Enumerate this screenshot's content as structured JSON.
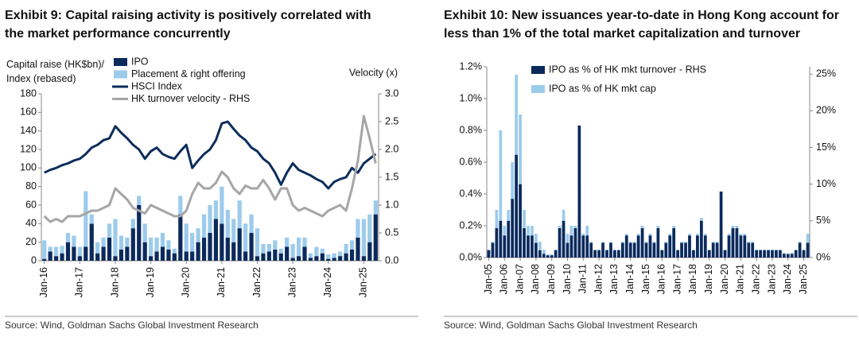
{
  "chart_data": [
    {
      "type": "combo",
      "title": "Exhibit 9: Capital raising activity is positively correlated with the market performance concurrently",
      "y_label": "Capital raise (HK$bn)/ Index (rebased)",
      "y2_label": "Velocity (x)",
      "source": "Source: Wind, Goldman Sachs Global Investment Research",
      "stacked": true,
      "legend": "top-left",
      "categories": [
        "Jan-16",
        null,
        null,
        null,
        null,
        null,
        "Jan-17",
        null,
        null,
        null,
        null,
        null,
        "Jan-18",
        null,
        null,
        null,
        null,
        null,
        "Jan-19",
        null,
        null,
        null,
        null,
        null,
        "Jan-20",
        null,
        null,
        null,
        null,
        null,
        "Jan-21",
        null,
        null,
        null,
        null,
        null,
        "Jan-22",
        null,
        null,
        null,
        null,
        null,
        "Jan-23",
        null,
        null,
        null,
        null,
        null,
        "Jan-24",
        null,
        null,
        null,
        null,
        null,
        "Jan-25",
        null,
        null
      ],
      "ylim": [
        0,
        180
      ],
      "yticks": [
        0,
        20,
        40,
        60,
        80,
        100,
        120,
        140,
        160,
        180
      ],
      "y2lim": [
        0,
        3
      ],
      "y2ticks": [
        {
          "value": 0,
          "label": "0.0"
        },
        0.5,
        {
          "value": 1,
          "label": "1.0"
        },
        1.5,
        {
          "value": 2,
          "label": "2.0"
        },
        2.5,
        {
          "value": 3,
          "label": "3.0"
        }
      ],
      "series": [
        {
          "name": "IPO",
          "style": "bar",
          "color": "#0b2a5c",
          "values": [
            2,
            10,
            5,
            8,
            20,
            15,
            5,
            15,
            40,
            8,
            15,
            25,
            5,
            12,
            15,
            35,
            60,
            20,
            5,
            10,
            15,
            12,
            8,
            50,
            10,
            10,
            20,
            25,
            30,
            45,
            40,
            25,
            20,
            35,
            10,
            30,
            5,
            8,
            10,
            12,
            8,
            15,
            3,
            5,
            15,
            3,
            5,
            8,
            2,
            3,
            5,
            8,
            12,
            25,
            5,
            20,
            50
          ]
        },
        {
          "name": "Placement & right offering",
          "style": "bar",
          "color": "#9dcbec",
          "values": [
            20,
            5,
            10,
            8,
            10,
            12,
            10,
            60,
            10,
            12,
            10,
            15,
            40,
            15,
            10,
            10,
            10,
            20,
            20,
            15,
            15,
            10,
            5,
            20,
            30,
            20,
            15,
            25,
            30,
            20,
            40,
            30,
            25,
            30,
            30,
            20,
            30,
            10,
            8,
            10,
            5,
            10,
            15,
            20,
            10,
            5,
            10,
            5,
            5,
            5,
            5,
            10,
            10,
            20,
            40,
            30,
            15
          ]
        },
        {
          "name": "HSCI Index",
          "style": "line",
          "color": "#0b2d5b",
          "values": [
            95,
            98,
            100,
            103,
            105,
            108,
            110,
            115,
            122,
            125,
            130,
            132,
            145,
            138,
            132,
            125,
            120,
            110,
            118,
            122,
            115,
            112,
            110,
            118,
            125,
            100,
            108,
            115,
            120,
            130,
            148,
            150,
            142,
            135,
            130,
            122,
            118,
            110,
            105,
            95,
            82,
            95,
            105,
            98,
            95,
            92,
            88,
            85,
            78,
            85,
            88,
            90,
            100,
            95,
            105,
            110,
            115
          ]
        },
        {
          "name": "HK turnover velocity - RHS",
          "style": "line",
          "axis": "y2",
          "color": "#a6a6a6",
          "values": [
            0.8,
            0.7,
            0.75,
            0.7,
            0.8,
            0.8,
            0.8,
            0.85,
            0.9,
            0.9,
            0.95,
            1.0,
            1.3,
            1.2,
            1.1,
            0.95,
            0.9,
            0.85,
            1.0,
            0.95,
            0.9,
            0.85,
            0.8,
            0.8,
            0.9,
            1.2,
            1.4,
            1.3,
            1.3,
            1.4,
            1.6,
            1.5,
            1.3,
            1.2,
            1.35,
            1.3,
            1.3,
            1.45,
            1.3,
            1.1,
            1.3,
            1.3,
            1.0,
            0.9,
            0.95,
            0.9,
            0.85,
            0.8,
            0.9,
            0.95,
            1.0,
            0.9,
            1.3,
            1.8,
            2.6,
            2.2,
            1.75
          ]
        }
      ]
    },
    {
      "type": "bar",
      "title": "Exhibit 10: New issuances year-to-date in Hong Kong account for less than 1% of the total market capitalization and turnover",
      "source": "Source: Wind, Goldman Sachs Global Investment Research",
      "stacked": false,
      "legend": "top-left",
      "categories": [
        "Jan-05",
        null,
        null,
        null,
        "Jan-06",
        null,
        null,
        null,
        "Jan-07",
        null,
        null,
        null,
        "Jan-08",
        null,
        null,
        null,
        "Jan-09",
        null,
        null,
        null,
        "Jan-10",
        null,
        null,
        null,
        "Jan-11",
        null,
        null,
        null,
        "Jan-12",
        null,
        null,
        null,
        "Jan-13",
        null,
        null,
        null,
        "Jan-14",
        null,
        null,
        null,
        "Jan-15",
        null,
        null,
        null,
        "Jan-16",
        null,
        null,
        null,
        "Jan-17",
        null,
        null,
        null,
        "Jan-18",
        null,
        null,
        null,
        "Jan-19",
        null,
        null,
        null,
        "Jan-20",
        null,
        null,
        null,
        "Jan-21",
        null,
        null,
        null,
        "Jan-22",
        null,
        null,
        null,
        "Jan-23",
        null,
        null,
        null,
        "Jan-24",
        null,
        null,
        null,
        "Jan-25",
        null
      ],
      "ylim": [
        0,
        1.2
      ],
      "yticks": [
        {
          "value": 0,
          "label": "0.0%"
        },
        {
          "value": 0.2,
          "label": "0.2%"
        },
        {
          "value": 0.4,
          "label": "0.4%"
        },
        {
          "value": 0.6,
          "label": "0.6%"
        },
        {
          "value": 0.8,
          "label": "0.8%"
        },
        {
          "value": 1,
          "label": "1.0%"
        },
        {
          "value": 1.2,
          "label": "1.2%"
        }
      ],
      "y2lim": [
        0,
        26
      ],
      "y2ticks": [
        {
          "value": 0,
          "label": "0%"
        },
        {
          "value": 5,
          "label": "5%"
        },
        {
          "value": 10,
          "label": "10%"
        },
        {
          "value": 15,
          "label": "15%"
        },
        {
          "value": 20,
          "label": "20%"
        },
        {
          "value": 25,
          "label": "25%"
        }
      ],
      "series": [
        {
          "name": "IPO as % of HK mkt turnover - RHS",
          "style": "bar",
          "axis": "y2",
          "color": "#0b2a5c",
          "values": [
            1,
            2,
            4,
            5,
            3,
            5,
            8,
            14,
            10,
            4,
            3,
            3,
            2,
            1,
            0.5,
            0.3,
            0.3,
            1,
            4,
            5,
            2,
            3,
            4,
            18,
            3,
            3,
            2,
            1,
            1,
            2,
            1,
            2,
            1,
            1,
            2,
            3,
            2,
            2,
            3,
            4,
            2,
            3,
            2,
            4,
            1,
            2,
            3,
            4,
            1,
            2,
            2,
            3,
            1,
            3,
            5,
            3,
            1,
            2,
            2,
            9,
            1,
            3,
            4,
            4,
            3,
            3,
            2,
            2,
            1,
            1,
            1,
            1,
            1,
            1,
            1,
            0.5,
            0.5,
            0.5,
            1,
            2,
            1,
            2
          ]
        },
        {
          "name": "IPO as % of HK mkt cap",
          "style": "bar",
          "color": "#9dcbec",
          "values": [
            0.05,
            0.1,
            0.3,
            0.8,
            0.2,
            0.3,
            0.6,
            1.15,
            0.9,
            0.3,
            0.2,
            0.2,
            0.15,
            0.1,
            0.05,
            0.02,
            0.02,
            0.05,
            0.2,
            0.3,
            0.15,
            0.2,
            0.2,
            0.45,
            0.15,
            0.2,
            0.1,
            0.05,
            0.05,
            0.1,
            0.05,
            0.1,
            0.05,
            0.05,
            0.1,
            0.15,
            0.1,
            0.1,
            0.15,
            0.2,
            0.1,
            0.15,
            0.1,
            0.2,
            0.05,
            0.1,
            0.15,
            0.2,
            0.05,
            0.1,
            0.1,
            0.15,
            0.05,
            0.15,
            0.25,
            0.15,
            0.05,
            0.1,
            0.1,
            0.2,
            0.05,
            0.15,
            0.2,
            0.2,
            0.15,
            0.15,
            0.1,
            0.1,
            0.05,
            0.05,
            0.05,
            0.05,
            0.05,
            0.05,
            0.05,
            0.03,
            0.02,
            0.03,
            0.05,
            0.1,
            0.05,
            0.15
          ]
        }
      ]
    }
  ]
}
